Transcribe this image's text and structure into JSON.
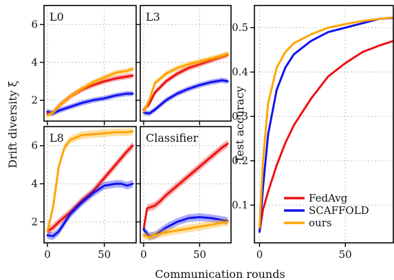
{
  "figure": {
    "ylabel_left": "Drift diversity ξ",
    "ylabel_right": "Test accuracy",
    "xlabel": "Communication rounds"
  },
  "colors": {
    "FedAvg": "#ee1111",
    "SCAFFOLD": "#1111ee",
    "ours": "#ffa500"
  },
  "chart_data": [
    {
      "type": "line",
      "title": "L0",
      "xlim": [
        -3,
        78
      ],
      "ylim": [
        0.9,
        7.0
      ],
      "xticks": [
        0,
        50
      ],
      "yticks": [
        2,
        4,
        6
      ],
      "xtick_labels_shown": false,
      "grid": true,
      "series": [
        {
          "name": "FedAvg",
          "x": [
            0,
            5,
            10,
            20,
            30,
            40,
            50,
            60,
            70,
            75
          ],
          "y": [
            1.3,
            1.35,
            1.7,
            2.2,
            2.55,
            2.8,
            3.0,
            3.15,
            3.25,
            3.3
          ]
        },
        {
          "name": "SCAFFOLD",
          "x": [
            0,
            5,
            10,
            20,
            30,
            40,
            50,
            60,
            70,
            75
          ],
          "y": [
            1.4,
            1.3,
            1.45,
            1.65,
            1.85,
            2.0,
            2.1,
            2.25,
            2.35,
            2.35
          ]
        },
        {
          "name": "ours",
          "x": [
            0,
            5,
            10,
            20,
            30,
            40,
            50,
            60,
            70,
            75
          ],
          "y": [
            1.2,
            1.35,
            1.7,
            2.2,
            2.6,
            2.95,
            3.2,
            3.45,
            3.55,
            3.65
          ]
        }
      ]
    },
    {
      "type": "line",
      "title": "L3",
      "xlim": [
        -3,
        78
      ],
      "ylim": [
        0.9,
        7.0
      ],
      "xticks": [
        0,
        50
      ],
      "yticks": [
        2,
        4,
        6
      ],
      "xtick_labels_shown": false,
      "ytick_labels_shown": false,
      "grid": true,
      "series": [
        {
          "name": "FedAvg",
          "x": [
            0,
            5,
            10,
            20,
            30,
            40,
            50,
            60,
            70,
            75
          ],
          "y": [
            1.5,
            1.8,
            2.4,
            3.0,
            3.4,
            3.7,
            3.9,
            4.1,
            4.3,
            4.4
          ]
        },
        {
          "name": "SCAFFOLD",
          "x": [
            0,
            5,
            10,
            20,
            30,
            40,
            50,
            60,
            70,
            75
          ],
          "y": [
            1.35,
            1.3,
            1.5,
            2.0,
            2.35,
            2.6,
            2.8,
            2.95,
            3.05,
            3.0
          ]
        },
        {
          "name": "ours",
          "x": [
            0,
            5,
            10,
            20,
            30,
            40,
            50,
            60,
            70,
            75
          ],
          "y": [
            1.4,
            2.0,
            2.9,
            3.4,
            3.7,
            3.9,
            4.05,
            4.2,
            4.35,
            4.45
          ]
        }
      ]
    },
    {
      "type": "line",
      "title": "L8",
      "xlim": [
        -3,
        78
      ],
      "ylim": [
        0.9,
        7.0
      ],
      "xticks": [
        0,
        50
      ],
      "yticks": [
        2,
        4,
        6
      ],
      "grid": true,
      "series": [
        {
          "name": "FedAvg",
          "x": [
            0,
            5,
            10,
            20,
            30,
            40,
            50,
            60,
            70,
            75
          ],
          "y": [
            1.5,
            1.7,
            2.0,
            2.5,
            3.1,
            3.6,
            4.3,
            5.0,
            5.7,
            6.0
          ]
        },
        {
          "name": "SCAFFOLD",
          "x": [
            0,
            5,
            10,
            20,
            30,
            40,
            50,
            60,
            65,
            70,
            75
          ],
          "y": [
            1.3,
            1.25,
            1.5,
            2.4,
            3.0,
            3.5,
            3.9,
            4.0,
            4.0,
            3.9,
            4.0
          ]
        },
        {
          "name": "ours",
          "x": [
            0,
            5,
            10,
            15,
            20,
            30,
            40,
            50,
            60,
            70,
            75
          ],
          "y": [
            1.5,
            2.8,
            4.9,
            5.9,
            6.3,
            6.55,
            6.6,
            6.65,
            6.7,
            6.7,
            6.75
          ]
        }
      ]
    },
    {
      "type": "line",
      "title": "Classifier",
      "xlim": [
        -3,
        78
      ],
      "ylim": [
        0.9,
        7.0
      ],
      "xticks": [
        0,
        50
      ],
      "yticks": [
        2,
        4,
        6
      ],
      "ytick_labels_shown": false,
      "grid": true,
      "series": [
        {
          "name": "FedAvg",
          "x": [
            0,
            3,
            5,
            10,
            15,
            20,
            30,
            40,
            50,
            60,
            70,
            75
          ],
          "y": [
            1.6,
            2.7,
            2.75,
            2.85,
            3.1,
            3.4,
            3.9,
            4.4,
            4.9,
            5.4,
            5.9,
            6.1
          ]
        },
        {
          "name": "SCAFFOLD",
          "x": [
            0,
            5,
            10,
            20,
            30,
            40,
            50,
            60,
            70,
            75
          ],
          "y": [
            1.6,
            1.25,
            1.3,
            1.7,
            2.0,
            2.2,
            2.25,
            2.2,
            2.1,
            2.05
          ]
        },
        {
          "name": "ours",
          "x": [
            0,
            5,
            10,
            20,
            30,
            40,
            50,
            60,
            70,
            75
          ],
          "y": [
            1.3,
            1.2,
            1.3,
            1.45,
            1.55,
            1.65,
            1.75,
            1.85,
            1.95,
            2.0
          ]
        }
      ]
    },
    {
      "type": "line",
      "title": "",
      "xlim": [
        -3,
        78
      ],
      "ylim": [
        0.015,
        0.55
      ],
      "xticks": [
        0,
        50
      ],
      "yticks": [
        0.1,
        0.2,
        0.3,
        0.4,
        0.5
      ],
      "grid": true,
      "legend": {
        "position": "lower-right",
        "entries": [
          "FedAvg",
          "SCAFFOLD",
          "ours"
        ]
      },
      "series": [
        {
          "name": "FedAvg",
          "x": [
            0,
            2,
            5,
            10,
            15,
            20,
            30,
            40,
            50,
            60,
            70,
            78
          ],
          "y": [
            0.04,
            0.09,
            0.13,
            0.19,
            0.24,
            0.28,
            0.34,
            0.39,
            0.42,
            0.445,
            0.46,
            0.47
          ]
        },
        {
          "name": "SCAFFOLD",
          "x": [
            0,
            2,
            5,
            10,
            15,
            20,
            30,
            40,
            50,
            60,
            70,
            78
          ],
          "y": [
            0.04,
            0.14,
            0.26,
            0.36,
            0.41,
            0.44,
            0.47,
            0.49,
            0.5,
            0.51,
            0.52,
            0.522
          ]
        },
        {
          "name": "ours",
          "x": [
            0,
            2,
            5,
            10,
            15,
            20,
            30,
            40,
            50,
            60,
            70,
            78
          ],
          "y": [
            0.05,
            0.2,
            0.33,
            0.41,
            0.445,
            0.465,
            0.485,
            0.5,
            0.508,
            0.515,
            0.52,
            0.523
          ]
        }
      ]
    }
  ]
}
